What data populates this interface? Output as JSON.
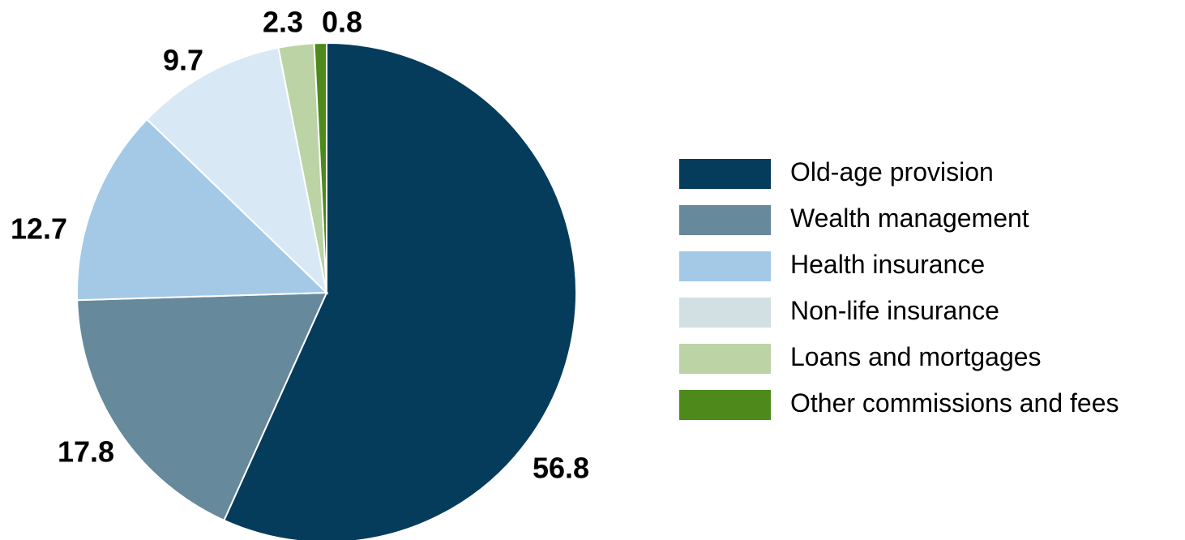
{
  "chart_data": {
    "type": "pie",
    "start_angle_deg": 0,
    "direction": "clockwise",
    "legend_position": "right",
    "slices": [
      {
        "label": "Old-age provision",
        "value": 56.8,
        "value_label": "56.8",
        "color": "#053c5c"
      },
      {
        "label": "Wealth management",
        "value": 17.8,
        "value_label": "17.8",
        "color": "#66899c"
      },
      {
        "label": "Health insurance",
        "value": 12.7,
        "value_label": "12.7",
        "color": "#a3c9e7"
      },
      {
        "label": "Non-life insurance",
        "value": 9.7,
        "value_label": "9.7",
        "color": "#d9e8f5"
      },
      {
        "label": "Loans and mortgages",
        "value": 2.3,
        "value_label": "2.3",
        "color": "#bcd3a5"
      },
      {
        "label": "Other commissions and fees",
        "value": 0.8,
        "value_label": "0.8",
        "color": "#4e8a1b"
      }
    ],
    "legend_swatch_colors": [
      "#053c5c",
      "#66899c",
      "#a3c9e7",
      "#d2e0e3",
      "#bcd3a5",
      "#4e8a1b"
    ]
  }
}
